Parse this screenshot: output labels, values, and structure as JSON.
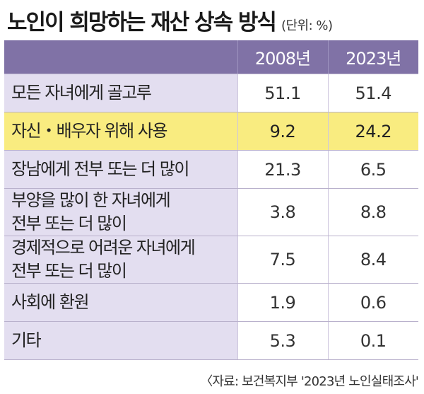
{
  "header": {
    "title": "노인이 희망하는 재산 상속 방식",
    "unit": "(단위: %)"
  },
  "source": "〈자료: 보건복지부 '2023년 노인실태조사'",
  "colors": {
    "header_bg": "#8072a6",
    "label_bg": "#e3def0",
    "highlight_bg": "#f9ec80"
  },
  "chart_data": {
    "type": "table",
    "title": "노인이 희망하는 재산 상속 방식",
    "unit": "(단위: %)",
    "columns": [
      "2008년",
      "2023년"
    ],
    "rows": [
      {
        "label": "모든 자녀에게 골고루",
        "values": [
          "51.1",
          "51.4"
        ],
        "highlight": false
      },
      {
        "label": "자신・배우자 위해 사용",
        "values": [
          "9.2",
          "24.2"
        ],
        "highlight": true
      },
      {
        "label": "장남에게 전부 또는 더 많이",
        "values": [
          "21.3",
          "6.5"
        ],
        "highlight": false
      },
      {
        "label_line1": "부양을 많이 한 자녀에게",
        "label_line2": "전부 또는 더 많이",
        "values": [
          "3.8",
          "8.8"
        ],
        "highlight": false
      },
      {
        "label_line1": "경제적으로 어려운 자녀에게",
        "label_line2": "전부 또는 더 많이",
        "values": [
          "7.5",
          "8.4"
        ],
        "highlight": false
      },
      {
        "label": "사회에 환원",
        "values": [
          "1.9",
          "0.6"
        ],
        "highlight": false
      },
      {
        "label": "기타",
        "values": [
          "5.3",
          "0.1"
        ],
        "highlight": false
      }
    ]
  }
}
